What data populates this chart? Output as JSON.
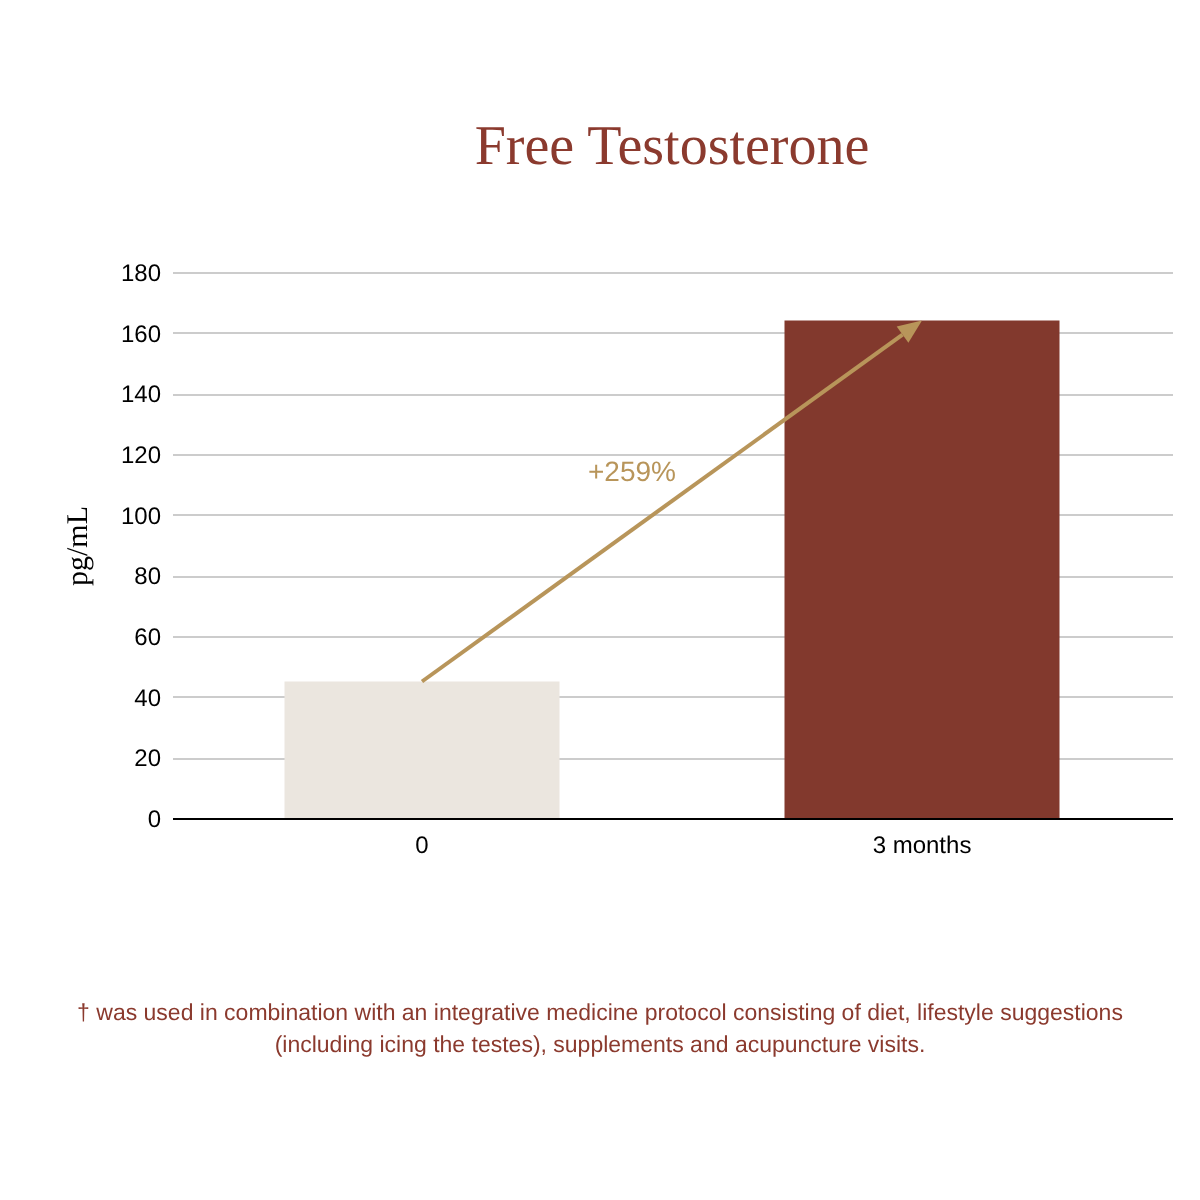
{
  "chart_data": {
    "type": "bar",
    "title": "Free Testosterone",
    "ylabel": "pg/mL",
    "categories": [
      "0",
      "3 months"
    ],
    "values": [
      45,
      164
    ],
    "colors": [
      "#ebe6df",
      "#82392d"
    ],
    "ylim": [
      0,
      180
    ],
    "yticks": [
      0,
      20,
      40,
      60,
      80,
      100,
      120,
      140,
      160,
      180
    ],
    "grid": "y",
    "annotations": [
      "+259%",
      "† was used in combination with an integrative medicine protocol consisting of diet, lifestyle suggestions (including icing the testes), supplements and acupuncture visits."
    ]
  }
}
